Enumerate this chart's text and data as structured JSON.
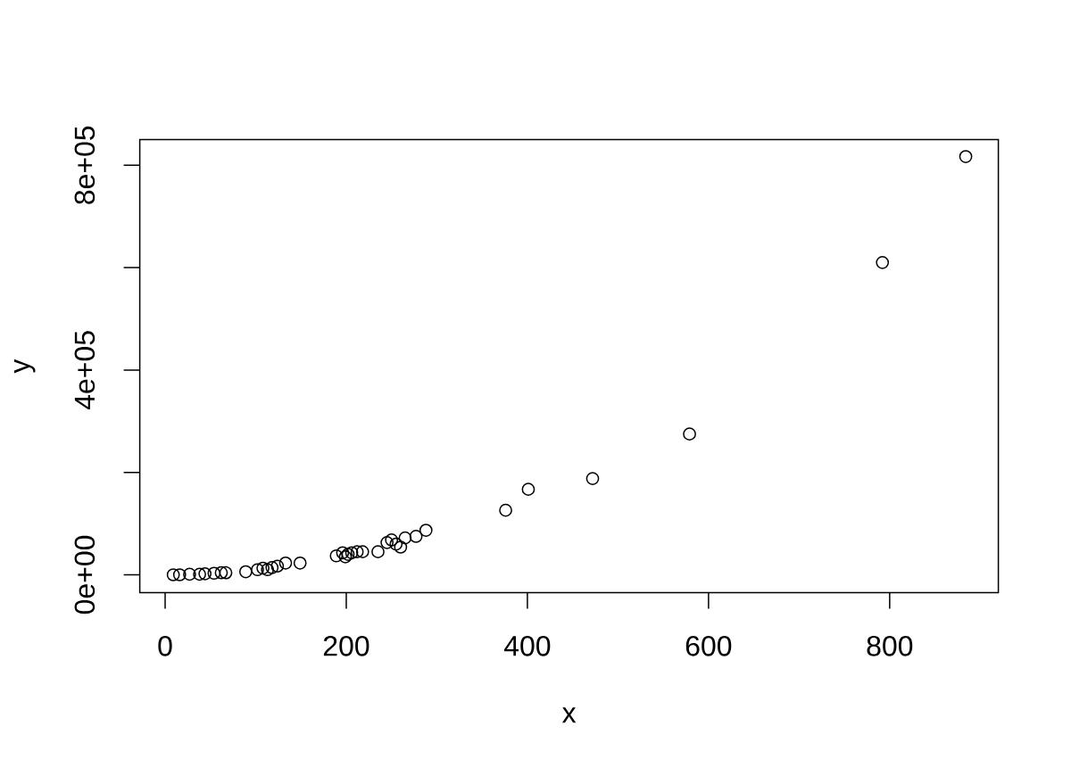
{
  "chart_data": {
    "type": "scatter",
    "xlabel": "x",
    "ylabel": "y",
    "x": [
      9,
      16,
      27,
      38,
      44,
      54,
      62,
      67,
      89,
      102,
      108,
      113,
      118,
      124,
      133,
      149,
      189,
      196,
      199,
      202,
      206,
      212,
      218,
      235,
      245,
      250,
      255,
      260,
      265,
      277,
      288,
      376,
      401,
      472,
      579,
      792,
      884
    ],
    "values": [
      0,
      0,
      1000,
      1000,
      2000,
      3000,
      4000,
      4000,
      6000,
      10000,
      13000,
      10000,
      14000,
      17000,
      23000,
      23000,
      37000,
      43000,
      35000,
      40000,
      43000,
      45000,
      45000,
      45000,
      63000,
      68000,
      60000,
      54000,
      72000,
      75000,
      87000,
      126000,
      167000,
      188000,
      275000,
      610000,
      817000
    ],
    "color": "#000000",
    "marker": "circle",
    "xlim": [
      -28,
      920
    ],
    "ylim": [
      -35000,
      850000
    ],
    "xticks": [
      0,
      200,
      400,
      600,
      800
    ],
    "yticks": [
      {
        "value": 0,
        "label": "0e+00"
      },
      {
        "value": 200000,
        "label": null
      },
      {
        "value": 400000,
        "label": "4e+05"
      },
      {
        "value": 600000,
        "label": null
      },
      {
        "value": 800000,
        "label": "8e+05"
      }
    ]
  }
}
